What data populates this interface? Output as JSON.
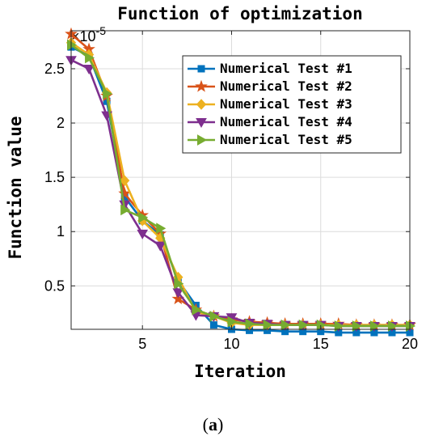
{
  "chart_data": {
    "type": "line",
    "title": "Function of optimization",
    "xlabel": "Iteration",
    "ylabel": "Function value",
    "y_exponent_base": "×10",
    "y_exponent_power": "-5",
    "xlim": [
      1,
      20
    ],
    "ylim": [
      0.1,
      2.85
    ],
    "xticks": [
      5,
      10,
      15,
      20
    ],
    "yticks": [
      0.5,
      1,
      1.5,
      2,
      2.5
    ],
    "ytick_labels": [
      "0.5",
      "1",
      "1.5",
      "2",
      "2.5"
    ],
    "grid": true,
    "legend_position": "top-right",
    "x": [
      1,
      2,
      3,
      4,
      5,
      6,
      7,
      8,
      9,
      10,
      11,
      12,
      13,
      14,
      15,
      16,
      17,
      18,
      19,
      20
    ],
    "series": [
      {
        "name": "Numerical Test #1",
        "color": "#0072BD",
        "marker": "square",
        "values": [
          2.7,
          2.62,
          2.2,
          1.32,
          1.1,
          0.97,
          0.55,
          0.32,
          0.14,
          0.1,
          0.09,
          0.09,
          0.08,
          0.08,
          0.08,
          0.07,
          0.07,
          0.07,
          0.07,
          0.07
        ]
      },
      {
        "name": "Numerical Test #2",
        "color": "#D95319",
        "marker": "star",
        "values": [
          2.82,
          2.68,
          2.25,
          1.35,
          1.15,
          0.98,
          0.38,
          0.28,
          0.22,
          0.19,
          0.17,
          0.16,
          0.15,
          0.15,
          0.15,
          0.15,
          0.14,
          0.14,
          0.14,
          0.14
        ]
      },
      {
        "name": "Numerical Test #3",
        "color": "#EDB120",
        "marker": "diamond",
        "values": [
          2.74,
          2.63,
          2.28,
          1.47,
          1.1,
          0.94,
          0.58,
          0.26,
          0.22,
          0.16,
          0.14,
          0.14,
          0.14,
          0.14,
          0.14,
          0.14,
          0.14,
          0.14,
          0.14,
          0.14
        ]
      },
      {
        "name": "Numerical Test #4",
        "color": "#7E2F8E",
        "marker": "triangle-down",
        "values": [
          2.58,
          2.5,
          2.07,
          1.25,
          0.98,
          0.87,
          0.44,
          0.23,
          0.22,
          0.21,
          0.16,
          0.15,
          0.14,
          0.14,
          0.14,
          0.13,
          0.13,
          0.13,
          0.13,
          0.13
        ]
      },
      {
        "name": "Numerical Test #5",
        "color": "#77AC30",
        "marker": "triangle-right",
        "values": [
          2.72,
          2.6,
          2.27,
          1.2,
          1.13,
          1.03,
          0.52,
          0.28,
          0.22,
          0.17,
          0.15,
          0.14,
          0.14,
          0.14,
          0.14,
          0.13,
          0.13,
          0.13,
          0.13,
          0.13
        ]
      }
    ]
  },
  "caption": {
    "open": "(",
    "label": "a",
    "close": ")"
  }
}
